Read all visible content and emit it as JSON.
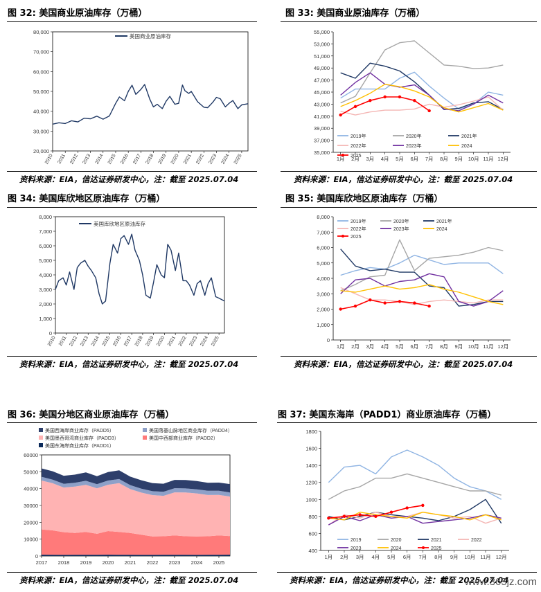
{
  "panels": [
    {
      "title": "图 32:  美国商业原油库存（万桶）",
      "source": "资料来源：EIA，信达证券研发中心，注：截至 2025.07.04",
      "chart_data": {
        "type": "line",
        "title": "",
        "x_ticks": [
          "2010",
          "2011",
          "2012",
          "2013",
          "2014",
          "2015",
          "2016",
          "2017",
          "2018",
          "2019",
          "2020",
          "2021",
          "2022",
          "2023",
          "2024",
          "2025"
        ],
        "ylim": [
          20000,
          80000
        ],
        "y_ticks": [
          "20,000",
          "30,000",
          "40,000",
          "50,000",
          "60,000",
          "70,000",
          "80,000"
        ],
        "legend": "top-center",
        "series": [
          {
            "name": "美国商业原油库存",
            "color": "#1f3864",
            "x": [
              2010,
              2010.5,
              2011,
              2011.5,
              2012,
              2012.5,
              2013,
              2013.5,
              2014,
              2014.5,
              2015,
              2015.3,
              2015.7,
              2016,
              2016.3,
              2016.6,
              2017,
              2017.3,
              2017.7,
              2018,
              2018.3,
              2018.7,
              2019,
              2019.3,
              2019.7,
              2020,
              2020.3,
              2020.5,
              2020.8,
              2021,
              2021.5,
              2022,
              2022.3,
              2022.7,
              2023,
              2023.3,
              2023.7,
              2024,
              2024.3,
              2024.7,
              2025,
              2025.5
            ],
            "values": [
              33500,
              34200,
              33800,
              35200,
              34600,
              36500,
              36200,
              37500,
              36000,
              37600,
              44000,
              47200,
              45300,
              50000,
              53100,
              48500,
              51000,
              53500,
              46200,
              42200,
              43500,
              41300,
              45000,
              47500,
              43500,
              44000,
              53200,
              50300,
              49000,
              50000,
              44800,
              42000,
              41800,
              44500,
              47000,
              46300,
              42200,
              44000,
              45400,
              41300,
              43200,
              43800
            ]
          }
        ]
      }
    },
    {
      "title": "图 33:  美国商业原油库存（万桶）",
      "source": "资料来源：EIA，信达证券研发中心，注：截至 2025.07.04",
      "chart_data": {
        "type": "line",
        "title": "",
        "x_ticks": [
          "1月",
          "2月",
          "3月",
          "4月",
          "5月",
          "6月",
          "7月",
          "8月",
          "9月",
          "10月",
          "11月",
          "12月"
        ],
        "ylim": [
          35000,
          55000
        ],
        "y_ticks": [
          "35,000",
          "37,000",
          "39,000",
          "41,000",
          "43,000",
          "45,000",
          "47,000",
          "49,000",
          "51,000",
          "53,000",
          "55,000"
        ],
        "legend": "bottom",
        "series": [
          {
            "name": "2019年",
            "color": "#8fb4e3",
            "values": [
              44000,
              45500,
              45500,
              45500,
              47300,
              48300,
              46000,
              44000,
              42200,
              43000,
              45000,
              44500
            ]
          },
          {
            "name": "2020年",
            "color": "#a6a6a6",
            "values": [
              43200,
              44300,
              48200,
              52000,
              53200,
              53500,
              51500,
              49500,
              49300,
              48900,
              49000,
              49500
            ]
          },
          {
            "name": "2021年",
            "color": "#1f3864",
            "values": [
              48200,
              47300,
              49800,
              49300,
              48500,
              46700,
              44500,
              42100,
              42300,
              43200,
              43400,
              42100
            ]
          },
          {
            "name": "2022年",
            "color": "#f4b6b4",
            "values": [
              41800,
              41200,
              41700,
              42000,
              42000,
              42200,
              43000,
              42500,
              42900,
              43500,
              44200,
              42000
            ]
          },
          {
            "name": "2023年",
            "color": "#7030a0",
            "values": [
              44500,
              46600,
              48200,
              46300,
              45800,
              46200,
              44500,
              42200,
              41900,
              43000,
              44500,
              43200
            ]
          },
          {
            "name": "2024",
            "color": "#ffc000",
            "values": [
              42600,
              43600,
              44800,
              46300,
              45900,
              45200,
              44200,
              42400,
              41700,
              42400,
              43100,
              42000
            ]
          },
          {
            "name": "2025",
            "color": "#ff0000",
            "values": [
              41200,
              42600,
              43600,
              44200,
              44200,
              43600,
              41900,
              null,
              null,
              null,
              null,
              null
            ],
            "markers": true
          }
        ]
      }
    },
    {
      "title": "图 34:  美国库欣地区原油库存（万桶）",
      "source": "资料来源：EIA，信达证券研发中心，注：截至 2025.07.04",
      "chart_data": {
        "type": "line",
        "title": "",
        "x_ticks": [
          "2010",
          "2011",
          "2012",
          "2013",
          "2014",
          "2015",
          "2016",
          "2017",
          "2018",
          "2019",
          "2020",
          "2021",
          "2022",
          "2023",
          "2024",
          "2025"
        ],
        "ylim": [
          0,
          8000
        ],
        "y_ticks": [
          "0",
          "1,000",
          "2,000",
          "3,000",
          "4,000",
          "5,000",
          "6,000",
          "7,000",
          "8,000"
        ],
        "legend": "top-center",
        "series": [
          {
            "name": "美国库欣地区原油库存",
            "color": "#1f3864",
            "x": [
              2010,
              2010.3,
              2010.7,
              2011,
              2011.3,
              2011.7,
              2012,
              2012.3,
              2012.7,
              2013,
              2013.3,
              2013.7,
              2014,
              2014.3,
              2014.6,
              2015,
              2015.3,
              2015.7,
              2016,
              2016.3,
              2016.7,
              2017,
              2017.3,
              2017.7,
              2018,
              2018.3,
              2018.7,
              2019,
              2019.3,
              2019.7,
              2020,
              2020.3,
              2020.6,
              2021,
              2021.3,
              2021.7,
              2022,
              2022.3,
              2022.7,
              2023,
              2023.3,
              2023.7,
              2024,
              2024.3,
              2024.7,
              2025,
              2025.5
            ],
            "values": [
              3000,
              3600,
              3800,
              3300,
              4200,
              3000,
              4500,
              4800,
              5000,
              4600,
              4300,
              3800,
              2700,
              2000,
              2200,
              4800,
              6100,
              5500,
              6500,
              6700,
              6100,
              6800,
              5700,
              5000,
              4000,
              2600,
              2400,
              3500,
              4700,
              4000,
              3800,
              6100,
              5700,
              4300,
              5500,
              3600,
              3600,
              3300,
              2600,
              3400,
              3600,
              2600,
              3400,
              3800,
              2500,
              2400,
              2200
            ]
          }
        ]
      }
    },
    {
      "title": "图 35:  美国库欣地区原油库存（万桶）",
      "source": "资料来源：EIA，信达证券研发中心，注：截至 2025.07.04",
      "chart_data": {
        "type": "line",
        "title": "",
        "x_ticks": [
          "1月",
          "2月",
          "3月",
          "4月",
          "5月",
          "6月",
          "7月",
          "8月",
          "9月",
          "10月",
          "11月",
          "12月"
        ],
        "ylim": [
          0,
          8000
        ],
        "y_ticks": [
          "0",
          "1,000",
          "2,000",
          "3,000",
          "4,000",
          "5,000",
          "6,000",
          "7,000",
          "8,000"
        ],
        "legend": "top",
        "series": [
          {
            "name": "2019年",
            "color": "#8fb4e3",
            "values": [
              4200,
              4500,
              4700,
              4600,
              5000,
              5500,
              5200,
              4900,
              5000,
              5000,
              5000,
              4300
            ]
          },
          {
            "name": "2020年",
            "color": "#a6a6a6",
            "values": [
              3200,
              3600,
              4100,
              4200,
              6500,
              4500,
              5300,
              5400,
              5500,
              5700,
              6000,
              5800
            ]
          },
          {
            "name": "2021年",
            "color": "#1f3864",
            "values": [
              5900,
              4800,
              4500,
              4600,
              4400,
              4400,
              3500,
              3400,
              2200,
              2300,
              2500,
              2500
            ]
          },
          {
            "name": "2022年",
            "color": "#f4b6b4",
            "values": [
              3400,
              3000,
              2600,
              2600,
              2500,
              2300,
              2500,
              2600,
              2500,
              2400,
              2600,
              2600
            ]
          },
          {
            "name": "2023年",
            "color": "#7030a0",
            "values": [
              3000,
              3900,
              4000,
              3500,
              3800,
              3900,
              4300,
              4100,
              2500,
              2200,
              2500,
              3200
            ]
          },
          {
            "name": "2024",
            "color": "#ffc000",
            "values": [
              3200,
              3100,
              3300,
              3500,
              3300,
              3400,
              3600,
              3300,
              3100,
              2800,
              2500,
              2300
            ]
          },
          {
            "name": "2025",
            "color": "#ff0000",
            "values": [
              2000,
              2200,
              2600,
              2400,
              2500,
              2400,
              2200,
              null,
              null,
              null,
              null,
              null
            ],
            "markers": true
          }
        ]
      }
    },
    {
      "title": "图 36:  美国分地区商业原油库存（万桶）",
      "source": "资料来源：EIA，信达证券研发中心，注：截至 2025.07.04",
      "chart_data": {
        "type": "area",
        "title": "",
        "x_ticks": [
          "2017",
          "2018",
          "2019",
          "2020",
          "2021",
          "2022",
          "2023",
          "2024",
          "2025"
        ],
        "ylim": [
          0,
          60000
        ],
        "y_ticks": [
          "0",
          "10000",
          "20000",
          "30000",
          "40000",
          "50000",
          "60000"
        ],
        "legend": "top",
        "x": [
          2017,
          2017.5,
          2018,
          2018.5,
          2019,
          2019.5,
          2020,
          2020.5,
          2021,
          2021.5,
          2022,
          2022.5,
          2023,
          2023.5,
          2024,
          2024.5,
          2025,
          2025.5
        ],
        "series": [
          {
            "name": "美国东海岸商业库存（PADD1）",
            "color": "#0b2a5b",
            "values": [
              800,
              700,
              650,
              700,
              750,
              700,
              800,
              750,
              700,
              650,
              650,
              700,
              750,
              700,
              650,
              700,
              750,
              800
            ]
          },
          {
            "name": "美国中西部商业库存（PADD2）",
            "color": "#ff7a7a",
            "values": [
              15000,
              14500,
              13500,
              13000,
              13500,
              12500,
              14000,
              13500,
              13000,
              12000,
              11000,
              11000,
              11500,
              11000,
              11000,
              11000,
              11500,
              11000
            ]
          },
          {
            "name": "美国墨西哥湾商业库存（PADD3）",
            "color": "#ffb3b3",
            "values": [
              29000,
              28000,
              26500,
              27500,
              28000,
              27000,
              27500,
              29000,
              26000,
              25000,
              24500,
              24000,
              25500,
              26000,
              25500,
              24500,
              24000,
              23500
            ]
          },
          {
            "name": "美国落基山脉地区商业库存（PADD4）",
            "color": "#8ea0c8",
            "values": [
              2200,
              2100,
              2200,
              2300,
              2400,
              2400,
              2500,
              2400,
              2400,
              2300,
              2300,
              2400,
              2500,
              2400,
              2400,
              2500,
              2500,
              2400
            ]
          },
          {
            "name": "美国西海岸商业库存（PADD5）",
            "color": "#2e3f6b",
            "values": [
              5000,
              5000,
              4800,
              4800,
              5000,
              4800,
              5000,
              5200,
              5000,
              5000,
              4800,
              4800,
              4900,
              5000,
              4900,
              4800,
              4800,
              5000
            ]
          }
        ]
      }
    },
    {
      "title": "图 37:  美国东海岸（PADD1）商业原油库存（万桶）",
      "source": "资料来源：EIA，信达证券研发中心，注：截至 2025.07.04",
      "chart_data": {
        "type": "line",
        "title": "",
        "x_ticks": [
          "1月",
          "2月",
          "3月",
          "4月",
          "5月",
          "6月",
          "7月",
          "8月",
          "9月",
          "10月",
          "11月",
          "12月"
        ],
        "ylim": [
          400,
          1800
        ],
        "y_ticks": [
          "400",
          "600",
          "800",
          "1000",
          "1200",
          "1400",
          "1600",
          "1800"
        ],
        "legend": "bottom",
        "series": [
          {
            "name": "2019",
            "color": "#8fb4e3",
            "values": [
              1200,
              1380,
              1400,
              1300,
              1500,
              1580,
              1500,
              1400,
              1250,
              1150,
              1100,
              1000
            ]
          },
          {
            "name": "2020",
            "color": "#a6a6a6",
            "values": [
              1000,
              1100,
              1150,
              1250,
              1250,
              1300,
              1250,
              1200,
              1150,
              1100,
              1100,
              1050
            ]
          },
          {
            "name": "2021",
            "color": "#1f3864",
            "values": [
              800,
              760,
              800,
              850,
              820,
              800,
              780,
              750,
              800,
              880,
              1000,
              720
            ]
          },
          {
            "name": "2022",
            "color": "#f4b6b4",
            "values": [
              700,
              820,
              780,
              850,
              800,
              800,
              850,
              820,
              780,
              800,
              720,
              780
            ]
          },
          {
            "name": "2023",
            "color": "#7030a0",
            "values": [
              700,
              800,
              750,
              820,
              780,
              800,
              720,
              740,
              760,
              780,
              820,
              780
            ]
          },
          {
            "name": "2024",
            "color": "#ffc000",
            "values": [
              780,
              760,
              850,
              820,
              800,
              780,
              850,
              820,
              800,
              760,
              820,
              760
            ]
          },
          {
            "name": "2025",
            "color": "#ff0000",
            "values": [
              780,
              800,
              820,
              800,
              850,
              900,
              930,
              null,
              null,
              null,
              null,
              null
            ],
            "markers": true
          }
        ]
      }
    }
  ],
  "watermark": "www.365jz.com"
}
